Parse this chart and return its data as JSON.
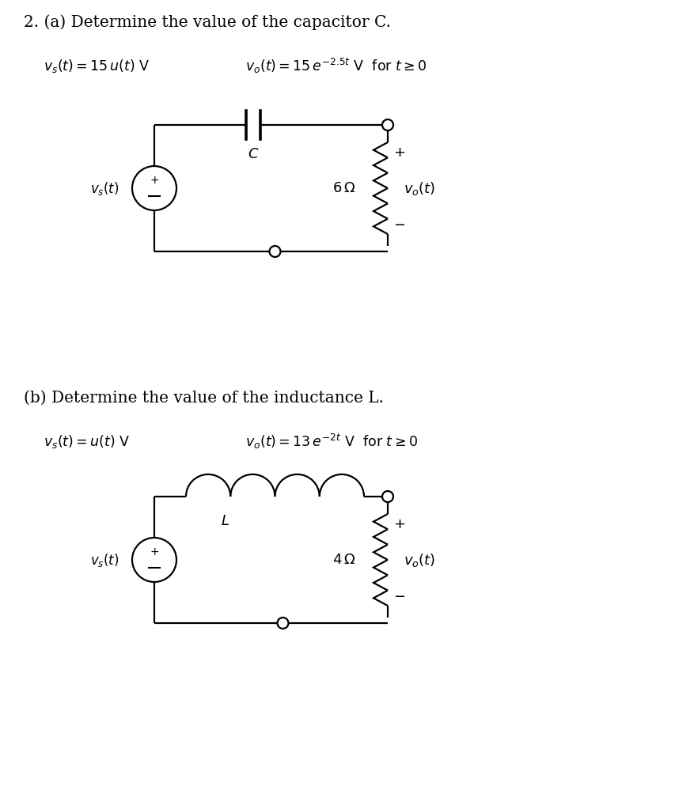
{
  "title_a": "2. (a) Determine the value of the capacitor C.",
  "title_b": "(b) Determine the value of the inductance L.",
  "bg_color": "#ffffff",
  "line_color": "#000000",
  "lw": 1.6,
  "fontsize_title": 14.5,
  "fontsize_eq": 12.5,
  "fontsize_label": 12,
  "fontsize_component": 12
}
